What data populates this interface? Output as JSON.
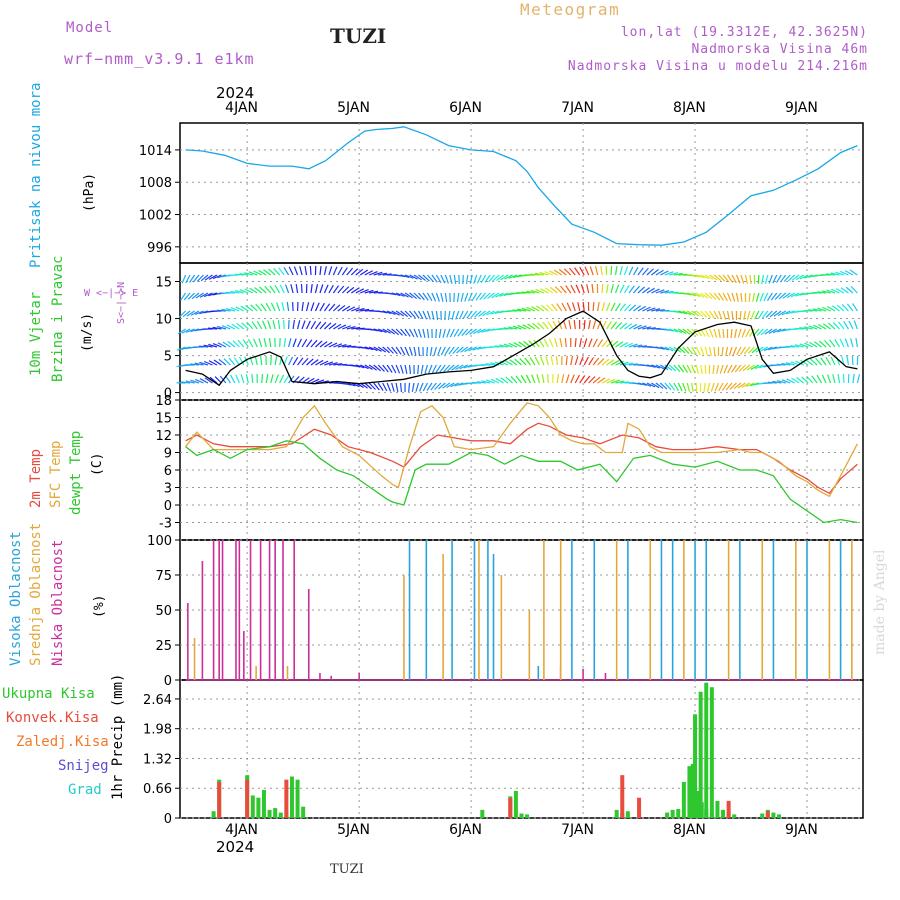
{
  "header": {
    "model_label": "Model",
    "model_name": "wrf−nmm_v3.9.1 e1km",
    "location": "TUZI",
    "meteogram": "Meteogram",
    "coords": "lon,lat (19.3312E, 42.3625N)",
    "elevation": "Nadmorska Visina 46m",
    "model_elevation": "Nadmorska Visina u modelu 214.216m",
    "footer_location": "TUZI",
    "watermark": "made by Angel"
  },
  "time_axis": {
    "year": "2024",
    "labels": [
      "4JAN",
      "5JAN",
      "6JAN",
      "7JAN",
      "8JAN",
      "9JAN"
    ]
  },
  "colors": {
    "pressure": "#1aa7e6",
    "temp_2m": "#e84c3d",
    "temp_sfc": "#e3a83c",
    "dewpoint": "#2ec82e",
    "cloud_high": "#2aa3dc",
    "cloud_mid": "#e3a83c",
    "cloud_low": "#cc2f9a",
    "precip_total": "#2ec82e",
    "precip_conv": "#e84c3d",
    "precip_frozen": "#f07a2a",
    "precip_snow": "#5a4ed8",
    "precip_grad": "#27c8c8"
  },
  "panels": {
    "pressure": {
      "label": "Pritisak na nivou mora",
      "unit": "(hPa)"
    },
    "wind": {
      "label1": "10m Vjetar",
      "label2": "Brzina i Pravac",
      "unit": "(m/s)",
      "compass": "W <−|−> E",
      "compass_ns": "S<−|−>N"
    },
    "temp": {
      "label1": "2m Temp",
      "label2": "SFC Temp",
      "label3": "dewpt Temp",
      "unit": "(C)"
    },
    "cloud": {
      "label1": "Visoka Oblacnost",
      "label2": "Srednja Oblacnost",
      "label3": "Niska Oblacnost",
      "unit": "(%)"
    },
    "precip": {
      "legend": [
        "Ukupna Kisa",
        "Konvek.Kisa",
        "Zaledj.Kisa",
        "Snijeg",
        "Grad"
      ],
      "axis": "1hr Precip (mm)"
    }
  },
  "chart_data": [
    {
      "type": "line",
      "name": "pressure",
      "x_range": [
        3.4,
        9.45
      ],
      "ylim": [
        993,
        1019
      ],
      "yticks": [
        996,
        1002,
        1008,
        1014
      ],
      "series": [
        {
          "x": [
            3.45,
            3.6,
            3.8,
            4.0,
            4.2,
            4.4,
            4.55,
            4.7,
            4.9,
            5.05,
            5.15,
            5.3,
            5.4,
            5.6,
            5.8,
            6.0,
            6.2,
            6.4,
            6.5,
            6.6,
            6.75,
            6.9,
            7.1,
            7.3,
            7.5,
            7.7,
            7.9,
            8.1,
            8.3,
            8.5,
            8.7,
            8.9,
            9.1,
            9.3,
            9.45
          ],
          "y": [
            1014,
            1013.8,
            1013,
            1011.5,
            1011,
            1011,
            1010.5,
            1012,
            1015.3,
            1017.5,
            1017.8,
            1018,
            1018.3,
            1016.8,
            1014.8,
            1014,
            1013.7,
            1012,
            1010,
            1007,
            1003.5,
            1000.2,
            998.7,
            996.6,
            996.4,
            996.3,
            996.9,
            998.7,
            1002,
            1005.5,
            1006.5,
            1008.4,
            1010.5,
            1013.5,
            1014.8
          ]
        }
      ]
    },
    {
      "type": "line",
      "name": "wind_speed",
      "ylim": [
        -1,
        17.5
      ],
      "yticks": [
        0,
        5,
        10,
        15
      ],
      "series": [
        {
          "x": [
            3.45,
            3.6,
            3.75,
            3.85,
            4.0,
            4.2,
            4.3,
            4.4,
            4.6,
            4.8,
            5.0,
            5.2,
            5.4,
            5.6,
            5.8,
            6.0,
            6.2,
            6.4,
            6.55,
            6.7,
            6.85,
            7.0,
            7.15,
            7.3,
            7.4,
            7.5,
            7.6,
            7.7,
            7.85,
            8.0,
            8.2,
            8.35,
            8.5,
            8.6,
            8.7,
            8.85,
            9.0,
            9.2,
            9.35,
            9.45
          ],
          "y": [
            3,
            2.5,
            1,
            3,
            4.5,
            5.5,
            4.8,
            1.5,
            1.2,
            1.5,
            1.2,
            1.5,
            1.8,
            2.5,
            2.8,
            3,
            3.5,
            5.2,
            6.5,
            8,
            10,
            11,
            9.5,
            5,
            3,
            2.2,
            2,
            2.5,
            6,
            8.2,
            9.2,
            9.5,
            9,
            4.5,
            2.6,
            3,
            4.5,
            5.5,
            3.5,
            3.2
          ]
        }
      ]
    },
    {
      "type": "line",
      "name": "temperature",
      "ylim": [
        -6,
        18
      ],
      "yticks": [
        -3,
        0,
        3,
        6,
        9,
        12,
        15,
        18
      ],
      "series": [
        {
          "name": "2m Temp",
          "x": [
            3.45,
            3.55,
            3.7,
            3.85,
            4.0,
            4.2,
            4.4,
            4.6,
            4.75,
            4.9,
            5.1,
            5.3,
            5.4,
            5.55,
            5.7,
            5.85,
            6.0,
            6.2,
            6.35,
            6.5,
            6.6,
            6.7,
            6.85,
            7.0,
            7.15,
            7.35,
            7.5,
            7.65,
            7.8,
            8.0,
            8.2,
            8.4,
            8.55,
            8.7,
            8.85,
            9.0,
            9.1,
            9.2,
            9.3,
            9.45
          ],
          "y": [
            11,
            12,
            10.5,
            10,
            10,
            10,
            10.5,
            13,
            12,
            10,
            9,
            7.5,
            6.5,
            10,
            12,
            11.5,
            11,
            11,
            10.5,
            13,
            14,
            13.5,
            12,
            11.5,
            10.5,
            12,
            11.5,
            10,
            9.5,
            9.5,
            10,
            9.5,
            9.5,
            8,
            6,
            4.5,
            3,
            2,
            4.5,
            7
          ]
        },
        {
          "name": "SFC Temp",
          "x": [
            3.45,
            3.55,
            3.7,
            3.85,
            4.0,
            4.2,
            4.35,
            4.5,
            4.6,
            4.7,
            4.85,
            5.0,
            5.2,
            5.3,
            5.35,
            5.45,
            5.55,
            5.65,
            5.75,
            5.85,
            6.0,
            6.2,
            6.35,
            6.5,
            6.6,
            6.7,
            6.8,
            6.9,
            7.0,
            7.1,
            7.2,
            7.35,
            7.4,
            7.5,
            7.6,
            7.7,
            7.85,
            8.0,
            8.2,
            8.4,
            8.5,
            8.6,
            8.75,
            8.9,
            9.0,
            9.1,
            9.2,
            9.3,
            9.45
          ],
          "y": [
            10,
            12.5,
            9.5,
            9.5,
            9.5,
            9.5,
            10,
            15,
            17,
            14,
            10,
            8.5,
            5,
            3.5,
            3,
            10,
            16,
            17,
            15,
            10,
            9.5,
            10,
            14,
            17.5,
            17,
            15,
            12,
            11,
            10.5,
            10.5,
            9,
            9,
            14,
            13,
            10,
            9,
            9,
            9,
            9,
            9.5,
            9,
            9,
            7.5,
            5,
            4,
            2.5,
            1.5,
            5,
            10.5
          ]
        },
        {
          "name": "dewpt Temp",
          "x": [
            3.45,
            3.55,
            3.7,
            3.85,
            4.0,
            4.2,
            4.35,
            4.5,
            4.65,
            4.8,
            4.95,
            5.1,
            5.25,
            5.3,
            5.4,
            5.5,
            5.6,
            5.8,
            6.0,
            6.15,
            6.3,
            6.45,
            6.6,
            6.8,
            6.95,
            7.15,
            7.3,
            7.45,
            7.6,
            7.8,
            8.0,
            8.2,
            8.4,
            8.55,
            8.7,
            8.85,
            9.0,
            9.15,
            9.3,
            9.45
          ],
          "y": [
            10,
            8.5,
            9.5,
            8,
            9.5,
            10,
            11,
            10.5,
            8,
            6,
            5,
            3,
            1,
            0.5,
            0,
            6,
            7,
            7,
            9,
            8.5,
            7,
            8.5,
            7.5,
            7.5,
            6,
            7,
            4,
            8,
            8.5,
            7,
            6.5,
            7.5,
            6,
            6,
            5,
            1,
            -1,
            -3,
            -2.5,
            -3
          ]
        }
      ]
    },
    {
      "type": "bar",
      "name": "cloud_cover",
      "ylim": [
        0,
        100
      ],
      "yticks": [
        0,
        25,
        50,
        75,
        100
      ],
      "series": [
        {
          "name": "Niska Oblacnost",
          "x": [
            3.47,
            3.6,
            3.7,
            3.75,
            3.78,
            3.9,
            3.93,
            3.97,
            4.03,
            4.12,
            4.2,
            4.25,
            4.32,
            4.42,
            4.55,
            4.65,
            4.75,
            5.0,
            6.8,
            7.0,
            7.2
          ],
          "values": [
            55,
            85,
            100,
            100,
            100,
            100,
            100,
            35,
            100,
            100,
            100,
            100,
            100,
            100,
            65,
            5,
            3,
            5,
            10,
            8,
            5
          ]
        },
        {
          "name": "Srednja Oblacnost",
          "x": [
            3.53,
            4.08,
            4.36,
            5.4,
            5.75,
            6.07,
            6.27,
            6.52,
            6.65,
            6.8,
            7.3,
            7.6,
            7.9,
            8.3,
            8.6,
            8.9,
            9.2,
            9.4
          ],
          "values": [
            30,
            10,
            10,
            75,
            90,
            100,
            75,
            50,
            100,
            100,
            100,
            100,
            100,
            100,
            100,
            100,
            100,
            100
          ]
        },
        {
          "name": "Visoka Oblacnost",
          "x": [
            5.45,
            5.6,
            5.83,
            6.03,
            6.15,
            6.2,
            6.6,
            6.9,
            7.1,
            7.4,
            7.7,
            7.8,
            8.0,
            8.1,
            8.4,
            8.7,
            9.0,
            9.3
          ],
          "values": [
            100,
            100,
            100,
            100,
            100,
            90,
            10,
            100,
            100,
            100,
            100,
            100,
            100,
            100,
            100,
            100,
            100,
            100
          ]
        }
      ]
    },
    {
      "type": "bar",
      "name": "precipitation",
      "ylim": [
        0,
        3.06
      ],
      "yticks": [
        0,
        0.66,
        1.32,
        1.98,
        2.64
      ],
      "series": [
        {
          "name": "Ukupna Kisa",
          "x": [
            3.7,
            3.75,
            4.0,
            4.05,
            4.1,
            4.15,
            4.2,
            4.25,
            4.3,
            4.35,
            4.4,
            4.45,
            4.5,
            6.1,
            6.35,
            6.4,
            6.45,
            6.5,
            7.3,
            7.35,
            7.4,
            7.5,
            7.95,
            8.0,
            8.05,
            8.1,
            8.15,
            7.75,
            7.8,
            7.85,
            7.9,
            7.95,
            7.98,
            8.02,
            8.06,
            8.1,
            8.15,
            8.2,
            8.25,
            8.3,
            8.35,
            8.6,
            8.65,
            8.7,
            8.75
          ],
          "values": [
            0.15,
            0.85,
            0.95,
            0.5,
            0.45,
            0.62,
            0.18,
            0.22,
            0.12,
            0.18,
            0.92,
            0.85,
            0.25,
            0.18,
            0.48,
            0.6,
            0.1,
            0.08,
            0.18,
            0.1,
            0.15,
            0.1,
            1.15,
            2.3,
            2.8,
            3.0,
            2.9,
            0.12,
            0.18,
            0.2,
            0.8,
            0.9,
            1.2,
            0.6,
            0.35,
            0.2,
            0.12,
            0.38,
            0.18,
            0.12,
            0.08,
            0.1,
            0.18,
            0.12,
            0.08
          ]
        },
        {
          "name": "Konvek.Kisa",
          "x": [
            3.75,
            4.0,
            4.35,
            6.35,
            7.35,
            7.5,
            8.3,
            8.65
          ],
          "values": [
            0.8,
            0.85,
            0.85,
            0.45,
            0.95,
            0.45,
            0.38,
            0.15
          ]
        }
      ]
    }
  ]
}
